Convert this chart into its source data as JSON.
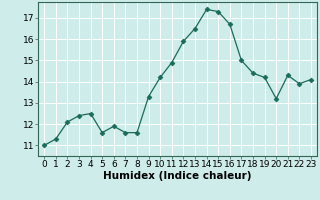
{
  "x": [
    0,
    1,
    2,
    3,
    4,
    5,
    6,
    7,
    8,
    9,
    10,
    11,
    12,
    13,
    14,
    15,
    16,
    17,
    18,
    19,
    20,
    21,
    22,
    23
  ],
  "y": [
    11.0,
    11.3,
    12.1,
    12.4,
    12.5,
    11.6,
    11.9,
    11.6,
    11.6,
    13.3,
    14.2,
    14.9,
    15.9,
    16.5,
    17.4,
    17.3,
    16.7,
    15.0,
    14.4,
    14.2,
    13.2,
    14.3,
    13.9,
    14.1
  ],
  "xlabel": "Humidex (Indice chaleur)",
  "ylim": [
    10.5,
    17.75
  ],
  "xlim": [
    -0.5,
    23.5
  ],
  "yticks": [
    11,
    12,
    13,
    14,
    15,
    16,
    17
  ],
  "xticks": [
    0,
    1,
    2,
    3,
    4,
    5,
    6,
    7,
    8,
    9,
    10,
    11,
    12,
    13,
    14,
    15,
    16,
    17,
    18,
    19,
    20,
    21,
    22,
    23
  ],
  "line_color": "#1a6b5a",
  "marker": "D",
  "marker_size": 2.5,
  "bg_color": "#cdecea",
  "grid_color": "#ffffff",
  "tick_label_fontsize": 6.5,
  "xlabel_fontsize": 7.5
}
